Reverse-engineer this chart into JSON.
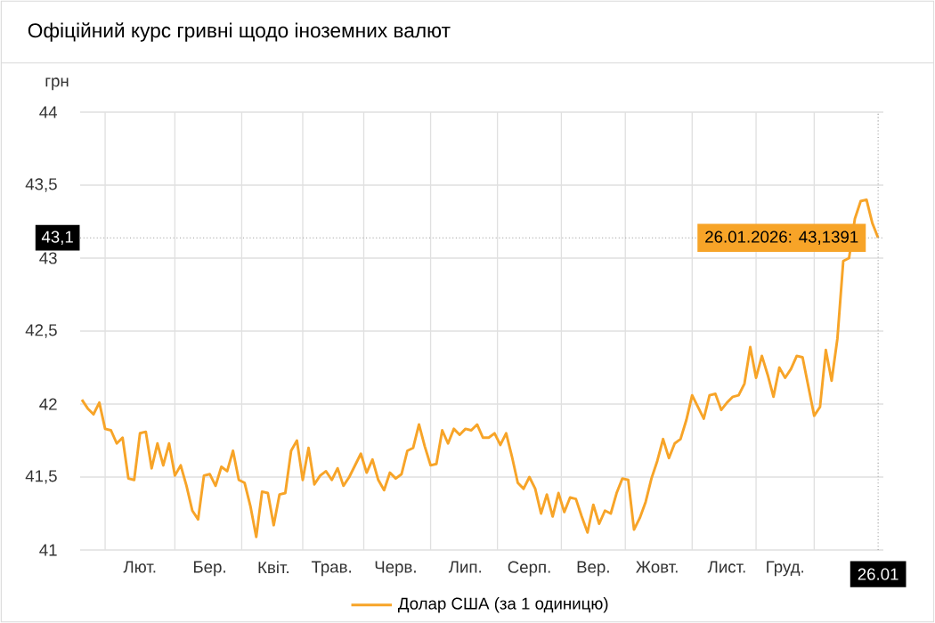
{
  "chart_data": {
    "type": "line",
    "title": "Офіційний курс гривні щодо іноземних валют",
    "ylabel": "грн",
    "categories": [
      null,
      null,
      null,
      null,
      null,
      null,
      null,
      null,
      null,
      null,
      "Лют.",
      null,
      null,
      null,
      null,
      null,
      null,
      null,
      null,
      null,
      null,
      null,
      "Бер.",
      null,
      null,
      null,
      null,
      null,
      null,
      null,
      null,
      null,
      null,
      "Квіт.",
      null,
      null,
      null,
      null,
      null,
      null,
      null,
      null,
      null,
      "Трав.",
      null,
      null,
      null,
      null,
      null,
      null,
      null,
      null,
      null,
      null,
      "Черв.",
      null,
      null,
      null,
      null,
      null,
      null,
      null,
      null,
      null,
      null,
      null,
      "Лип.",
      null,
      null,
      null,
      null,
      null,
      null,
      null,
      null,
      null,
      null,
      "Серп.",
      null,
      null,
      null,
      null,
      null,
      null,
      null,
      null,
      null,
      null,
      "Вер.",
      null,
      null,
      null,
      null,
      null,
      null,
      null,
      null,
      null,
      null,
      "Жовт.",
      null,
      null,
      null,
      null,
      null,
      null,
      null,
      null,
      null,
      null,
      null,
      "Лист.",
      null,
      null,
      null,
      null,
      null,
      null,
      null,
      null,
      null,
      "Груд.",
      null,
      null,
      null,
      null,
      null,
      null,
      null,
      null,
      null,
      null,
      null,
      null,
      null,
      null,
      null,
      "26.01"
    ],
    "series": [
      {
        "name": "Долар США (за 1 одиницю)",
        "color": "#f7a428",
        "values": [
          42.03,
          41.97,
          41.93,
          42.01,
          41.83,
          41.82,
          41.73,
          41.77,
          41.49,
          41.48,
          41.8,
          41.81,
          41.56,
          41.73,
          41.58,
          41.73,
          41.51,
          41.58,
          41.44,
          41.27,
          41.21,
          41.51,
          41.52,
          41.44,
          41.57,
          41.54,
          41.68,
          41.48,
          41.46,
          41.3,
          41.09,
          41.4,
          41.39,
          41.17,
          41.38,
          41.39,
          41.68,
          41.75,
          41.48,
          41.7,
          41.45,
          41.51,
          41.54,
          41.48,
          41.56,
          41.44,
          41.5,
          41.58,
          41.66,
          41.53,
          41.62,
          41.48,
          41.41,
          41.53,
          41.49,
          41.52,
          41.68,
          41.7,
          41.86,
          41.71,
          41.58,
          41.59,
          41.82,
          41.73,
          41.83,
          41.79,
          41.83,
          41.82,
          41.86,
          41.77,
          41.77,
          41.8,
          41.72,
          41.8,
          41.64,
          41.46,
          41.42,
          41.5,
          41.42,
          41.25,
          41.38,
          41.23,
          41.39,
          41.26,
          41.36,
          41.35,
          41.23,
          41.12,
          41.31,
          41.18,
          41.27,
          41.25,
          41.39,
          41.49,
          41.48,
          41.14,
          41.22,
          41.33,
          41.49,
          41.61,
          41.76,
          41.63,
          41.73,
          41.76,
          41.89,
          42.06,
          41.98,
          41.9,
          42.06,
          42.07,
          41.96,
          42.01,
          42.05,
          42.06,
          42.14,
          42.39,
          42.18,
          42.33,
          42.2,
          42.05,
          42.25,
          42.18,
          42.24,
          42.33,
          42.32,
          42.12,
          41.92,
          41.98,
          42.37,
          42.16,
          42.45,
          42.98,
          43.0,
          43.27,
          43.39,
          43.4,
          43.24,
          43.1391
        ]
      }
    ],
    "ylim": [
      41,
      44
    ],
    "yticks": [
      {
        "value": 41,
        "label": "41"
      },
      {
        "value": 41.5,
        "label": "41,5"
      },
      {
        "value": 42,
        "label": "42"
      },
      {
        "value": 42.5,
        "label": "42,5"
      },
      {
        "value": 43,
        "label": "43"
      },
      {
        "value": 43.5,
        "label": "43,5"
      },
      {
        "value": 44,
        "label": "44"
      }
    ],
    "grid": true,
    "legend": "bottom",
    "marker": "none",
    "line_style": "solid",
    "ref_lines": [
      {
        "axis": "y",
        "value": 43.1391,
        "label": "43,1",
        "line_style": "dotted",
        "color": "#999999"
      },
      {
        "axis": "x",
        "value": "26.01",
        "line_style": "dotted",
        "color": "#999999"
      }
    ],
    "annotations": [
      {
        "text": "26.01.2026: 43,1391",
        "x": "26.01",
        "y": 43.1391
      }
    ]
  }
}
